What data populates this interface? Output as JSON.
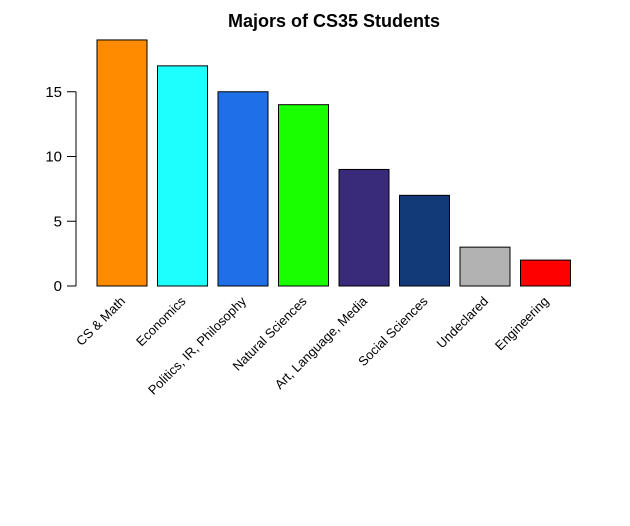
{
  "chart_data": {
    "type": "bar",
    "title": "Majors of CS35 Students",
    "xlabel": "",
    "ylabel": "",
    "categories": [
      "CS & Math",
      "Economics",
      "Politics, IR, Philosophy",
      "Natural Sciences",
      "Art, Language, Media",
      "Social Sciences",
      "Undeclared",
      "Engineering"
    ],
    "values": [
      19,
      17,
      15,
      14,
      9,
      7,
      3,
      2
    ],
    "colors": [
      "#ff8c00",
      "#1dffff",
      "#1e6fe8",
      "#1aff00",
      "#3a2a7a",
      "#123a78",
      "#b2b2b2",
      "#ff0000"
    ],
    "y_ticks": [
      "0",
      "5",
      "10",
      "15"
    ],
    "ylim": [
      0,
      19
    ],
    "grid": false,
    "legend": "none"
  }
}
